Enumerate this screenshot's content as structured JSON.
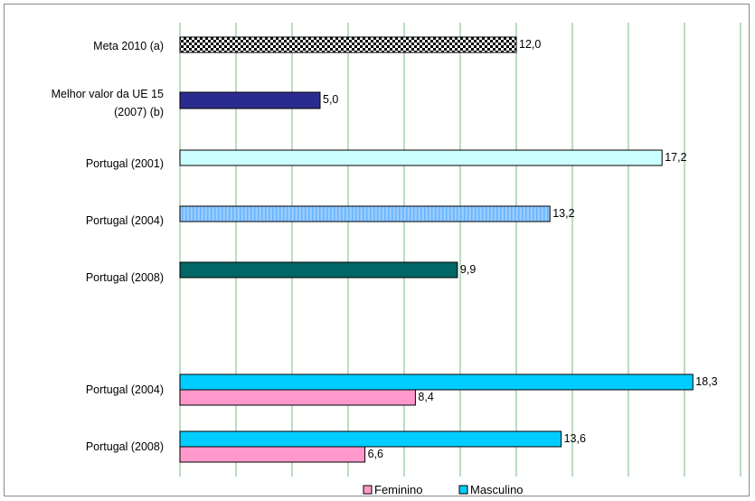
{
  "chart_data": {
    "type": "bar",
    "orientation": "horizontal",
    "title": "",
    "xlabel": "",
    "ylabel": "",
    "xlim": [
      0,
      20
    ],
    "grid": true,
    "legend_position": "bottom",
    "colors": {
      "frame": "#8a8a8a",
      "grid": "#8fc59a",
      "bar_border": "#000000",
      "checker": "#000000",
      "melhor": "#2b2b8f",
      "p2001": "#ccffff",
      "p2004": "#99ccff",
      "p2004_stripe": "#66b3ff",
      "p2008": "#006666",
      "feminino": "#ff99cc",
      "masculino": "#00ccff"
    },
    "groups": [
      {
        "label": "Meta 2010 (a)",
        "bars": [
          {
            "value": 12.0,
            "value_label": "12,0",
            "style": "checker"
          }
        ]
      },
      {
        "label": "Melhor valor da UE 15 (2007) (b)",
        "label_lines": [
          "Melhor valor da UE 15",
          "(2007) (b)"
        ],
        "bars": [
          {
            "value": 5.0,
            "value_label": "5,0",
            "style": "melhor"
          }
        ]
      },
      {
        "label": "Portugal (2001)",
        "bars": [
          {
            "value": 17.2,
            "value_label": "17,2",
            "style": "p2001"
          }
        ]
      },
      {
        "label": "Portugal (2004)",
        "bars": [
          {
            "value": 13.2,
            "value_label": "13,2",
            "style": "p2004"
          }
        ]
      },
      {
        "label": "Portugal (2008)",
        "bars": [
          {
            "value": 9.9,
            "value_label": "9,9",
            "style": "p2008"
          }
        ]
      },
      {
        "label": "Portugal (2004)",
        "bars": [
          {
            "value": 18.3,
            "value_label": "18,3",
            "style": "masculino",
            "series": "Masculino"
          },
          {
            "value": 8.4,
            "value_label": "8,4",
            "style": "feminino",
            "series": "Feminino"
          }
        ]
      },
      {
        "label": "Portugal (2008)",
        "bars": [
          {
            "value": 13.6,
            "value_label": "13,6",
            "style": "masculino",
            "series": "Masculino"
          },
          {
            "value": 6.6,
            "value_label": "6,6",
            "style": "feminino",
            "series": "Feminino"
          }
        ]
      }
    ],
    "legend": [
      {
        "name": "Feminino",
        "style": "feminino"
      },
      {
        "name": "Masculino",
        "style": "masculino"
      }
    ]
  }
}
